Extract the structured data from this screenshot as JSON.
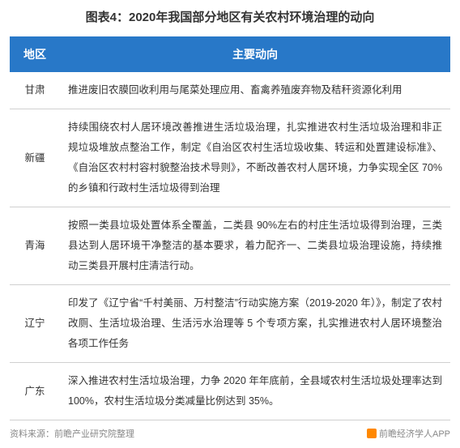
{
  "title": "图表4：2020年我国部分地区有关农村环境治理的动向",
  "table": {
    "header": {
      "region": "地区",
      "trend": "主要动向"
    },
    "header_bg": "#2878c8",
    "header_text_color": "#ffffff",
    "border_color": "#d0d0d0",
    "rows": [
      {
        "region": "甘肃",
        "trend": "推进废旧农膜回收利用与尾菜处理应用、畜禽养殖废弃物及秸秆资源化利用"
      },
      {
        "region": "新疆",
        "trend": "持续围绕农村人居环境改善推进生活垃圾治理，扎实推进农村生活垃圾治理和非正规垃圾堆放点整治工作，制定《自治区农村生活垃圾收集、转运和处置建设标准》、《自治区农村村容村貌整治技术导则》，不断改善农村人居环境，力争实现全区 70%的乡镇和行政村生活垃圾得到治理"
      },
      {
        "region": "青海",
        "trend": "按照一类县垃圾处置体系全覆盖，二类县 90%左右的村庄生活垃圾得到治理，三类县达到人居环境干净整洁的基本要求，着力配齐一、二类县垃圾治理设施，持续推动三类县开展村庄清洁行动。"
      },
      {
        "region": "辽宁",
        "trend": "印发了《辽宁省“千村美丽、万村整洁”行动实施方案（2019-2020 年）》，制定了农村改厕、生活垃圾治理、生活污水治理等 5 个专项方案，扎实推进农村人居环境整治各项工作任务"
      },
      {
        "region": "广东",
        "trend": "深入推进农村生活垃圾治理，力争 2020 年年底前，全县域农村生活垃圾处理率达到 100%，农村生活垃圾分类减量比例达到 35%。"
      }
    ]
  },
  "footer": {
    "source_label": "资料来源：前瞻产业研究院整理",
    "app_label": "前瞻经济学人APP"
  }
}
